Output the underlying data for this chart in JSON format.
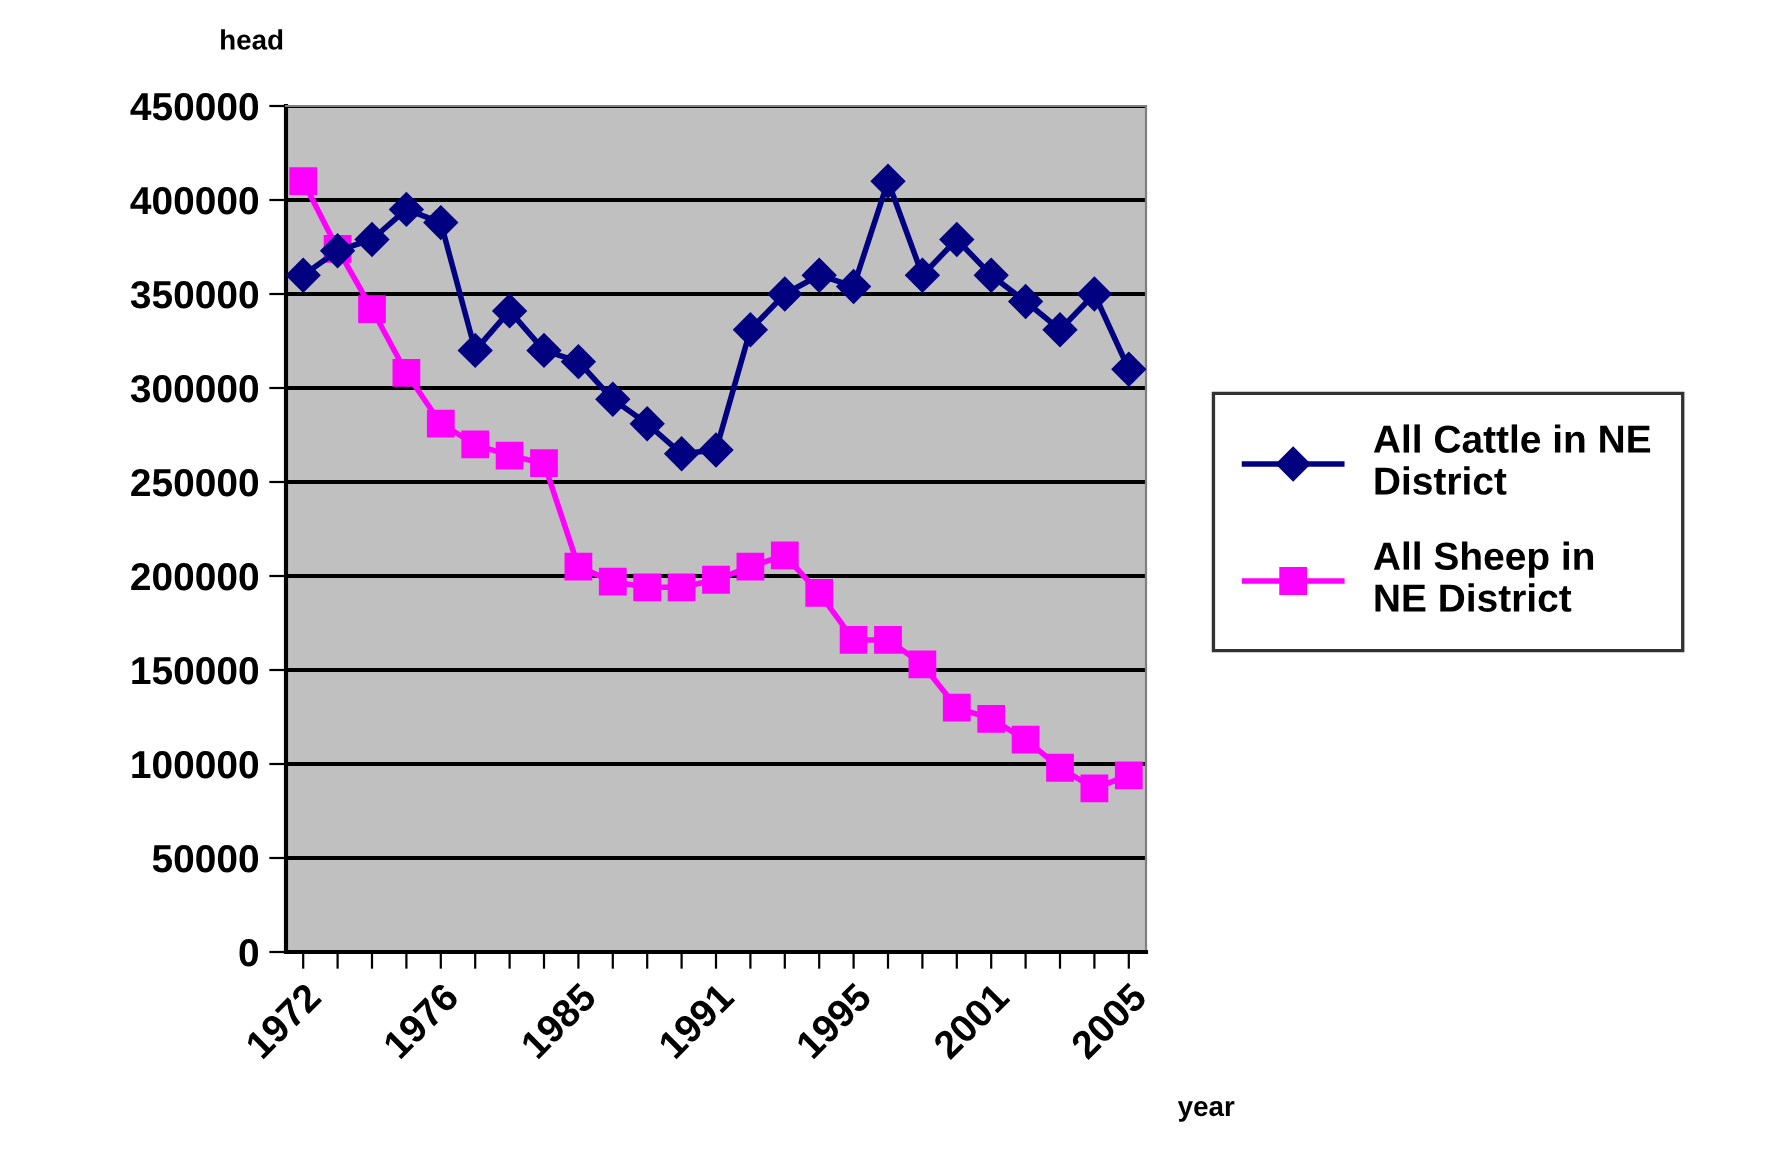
{
  "chart_data": {
    "type": "line",
    "ylabel": "head",
    "xlabel": "year",
    "categories": [
      "1972",
      null,
      null,
      null,
      "1976",
      null,
      null,
      null,
      "1985",
      null,
      null,
      null,
      "1991",
      null,
      null,
      null,
      "1995",
      null,
      null,
      null,
      "2001",
      null,
      null,
      null,
      "2005"
    ],
    "series": [
      {
        "name": "All Cattle in NE\nDistrict",
        "color": "#000080",
        "marker": "diamond",
        "values": [
          360000,
          373000,
          379000,
          395000,
          388000,
          320000,
          341000,
          320000,
          314000,
          294000,
          281000,
          265000,
          267000,
          331000,
          350000,
          360000,
          354000,
          410000,
          360000,
          379000,
          360000,
          346000,
          331000,
          350000,
          310000
        ]
      },
      {
        "name": "All Sheep in\nNE District",
        "color": "#ff00ff",
        "marker": "square",
        "values": [
          410000,
          374000,
          342000,
          308000,
          281000,
          270000,
          264000,
          260000,
          205000,
          197000,
          194000,
          194000,
          198000,
          205000,
          211000,
          191000,
          166000,
          166000,
          153000,
          130000,
          124000,
          113000,
          98000,
          87000,
          94000
        ]
      }
    ],
    "ylim": [
      0,
      450000
    ],
    "yticks": [
      0,
      50000,
      100000,
      150000,
      200000,
      250000,
      300000,
      350000,
      400000,
      450000
    ],
    "grid": "y",
    "legend": "right",
    "line_style": "solid"
  }
}
